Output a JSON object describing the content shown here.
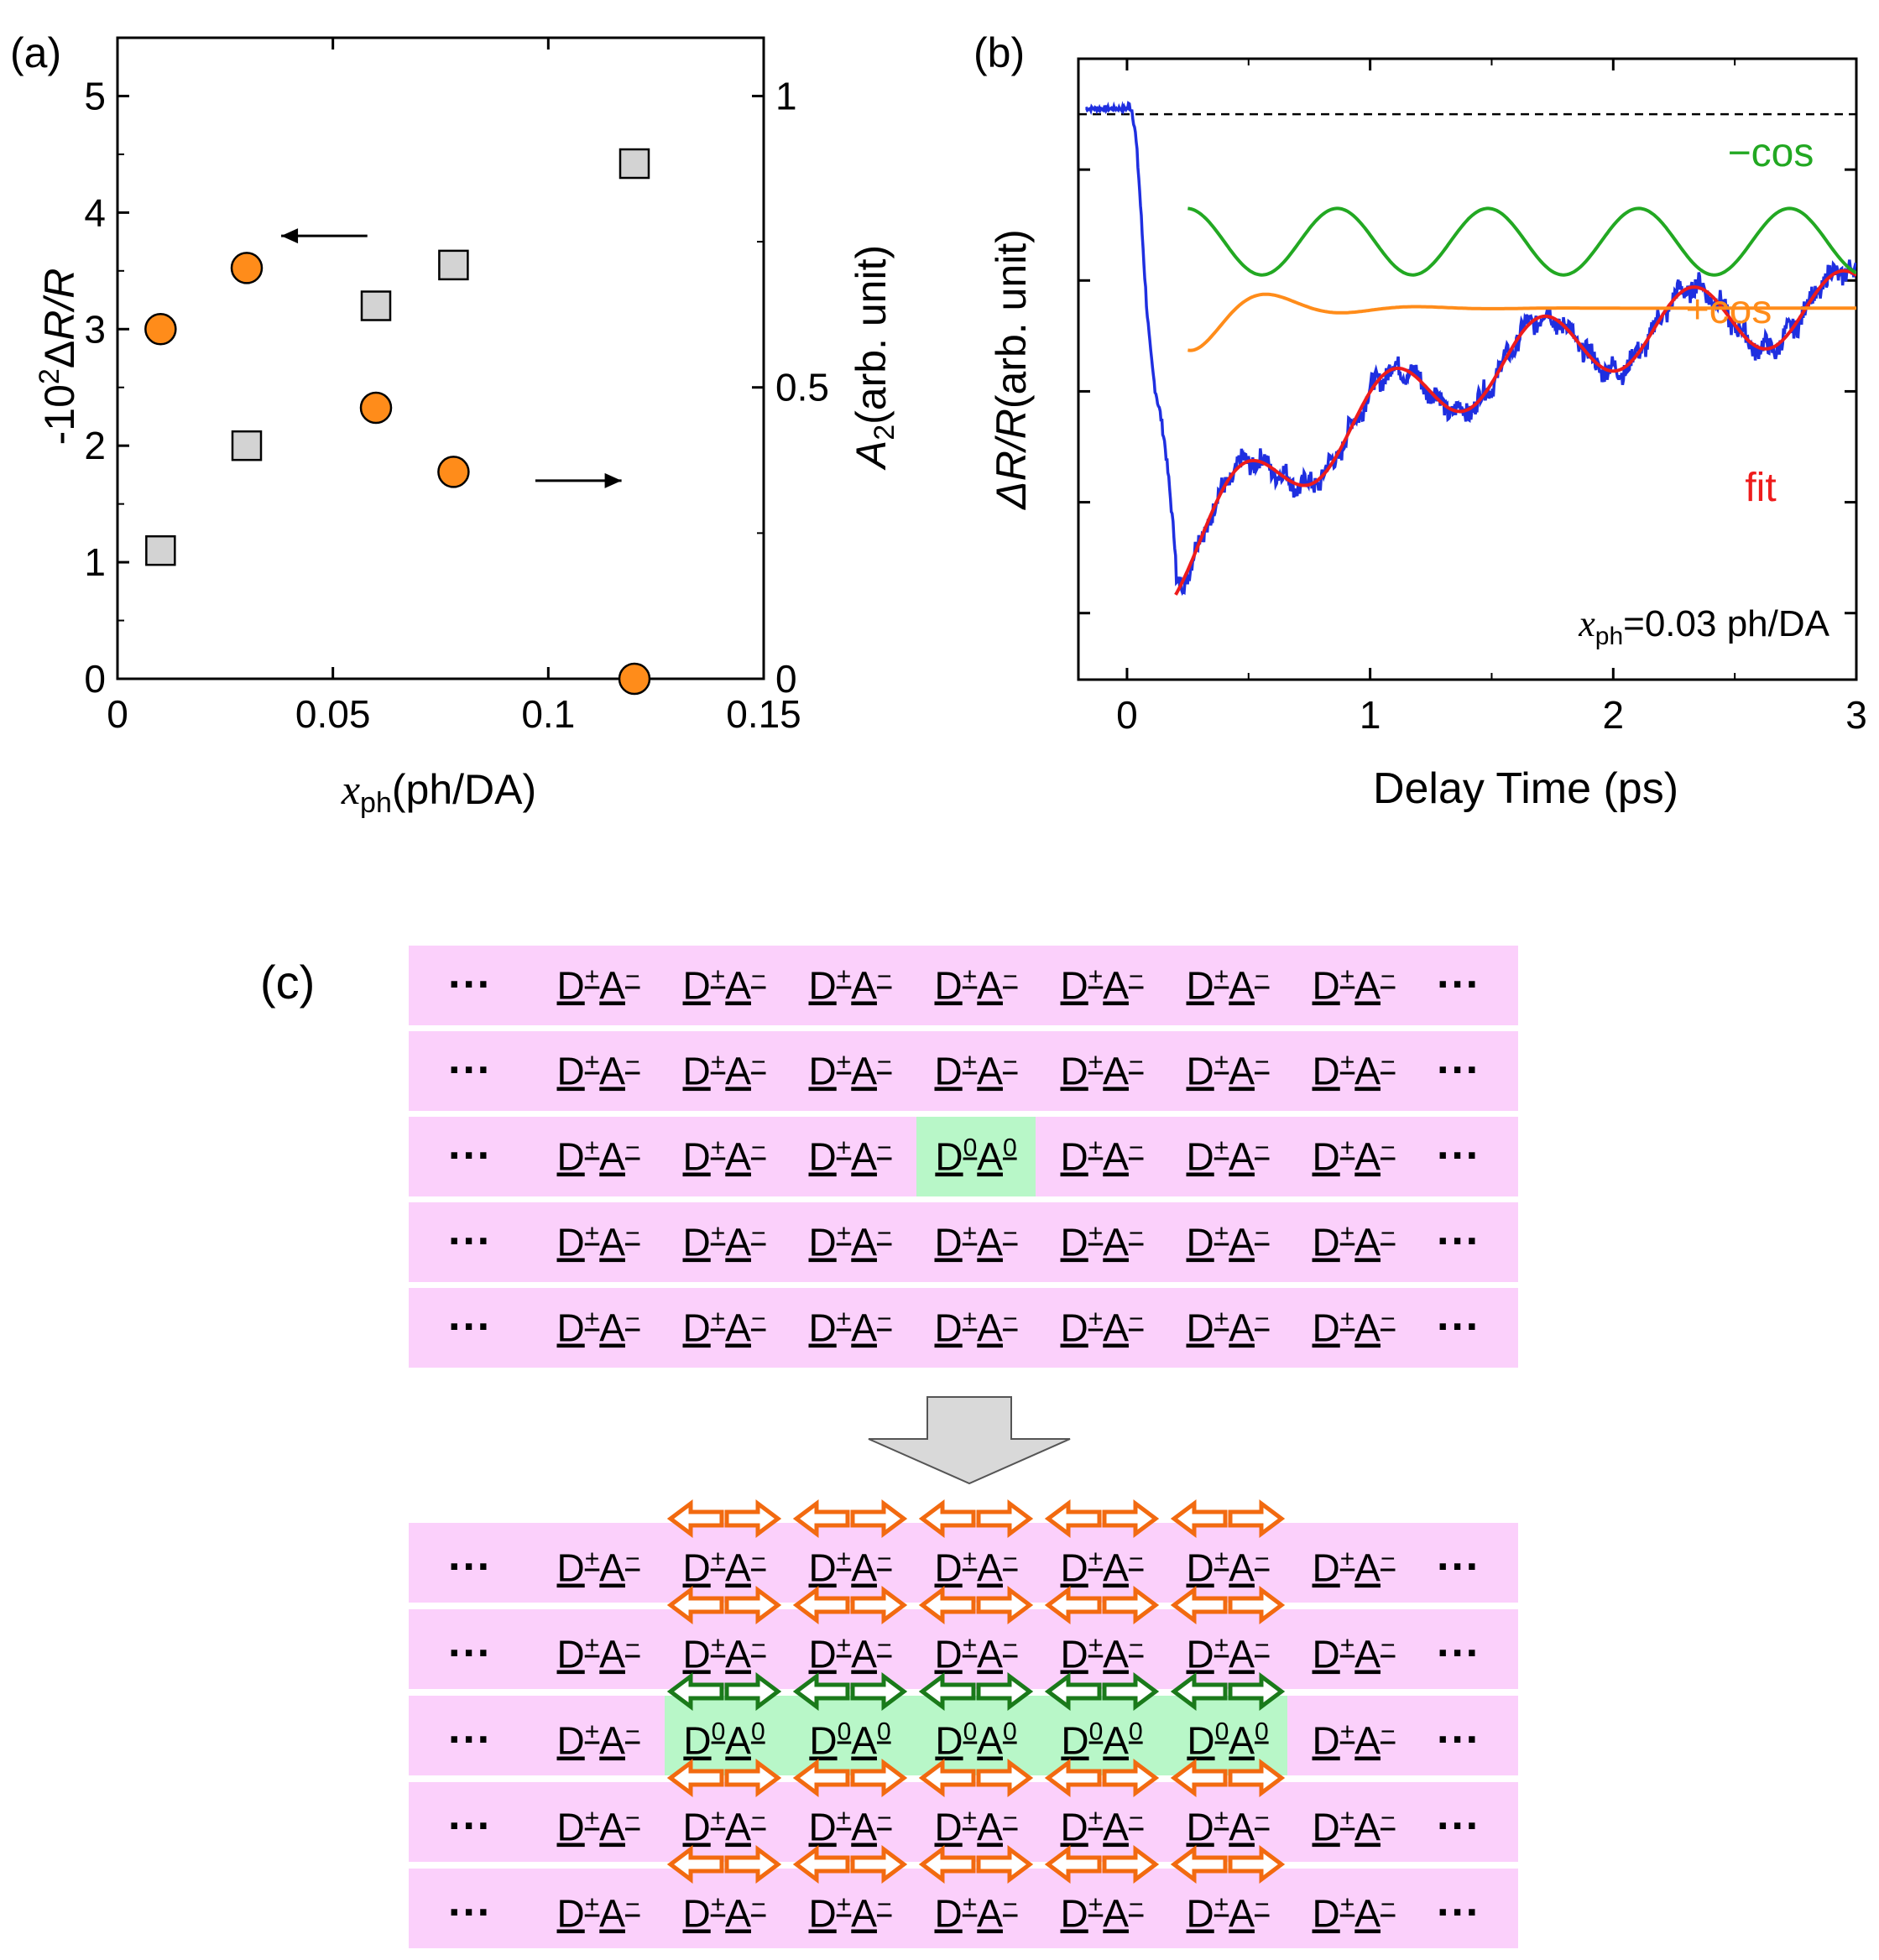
{
  "chart_data": [
    {
      "panel": "(a)",
      "type": "scatter",
      "xlabel_var": "x",
      "xlabel_sub": "ph",
      "xlabel_unit": "(ph/DA)",
      "xlim": [
        0,
        0.15
      ],
      "xticks": [
        "0",
        "0.05",
        "0.1",
        "0.15"
      ],
      "xtick_values": [
        0,
        0.05,
        0.1,
        0.15
      ],
      "ylabel_left_pre": "-10",
      "ylabel_left_sup": "2",
      "ylabel_left_mid": "Δ",
      "ylabel_left_var": "R/R",
      "ylim_left": [
        0,
        5.5
      ],
      "yticks_left": [
        "0",
        "1",
        "2",
        "3",
        "4",
        "5"
      ],
      "ylabel_right_var": "A",
      "ylabel_right_sub": "2",
      "ylabel_right_unit": "(arb. unit)",
      "ylim_right": [
        0,
        1.1
      ],
      "yticks_right": [
        "0",
        "0.5",
        "1"
      ],
      "series": [
        {
          "name": "-10^2 ΔR/R",
          "axis": "left",
          "marker": "square",
          "color": "#d3d3d3",
          "x": [
            0.01,
            0.03,
            0.06,
            0.078,
            0.12
          ],
          "y": [
            1.1,
            2.0,
            3.2,
            3.55,
            4.42
          ]
        },
        {
          "name": "A2",
          "axis": "right",
          "marker": "circle",
          "color": "#ff8c1a",
          "x": [
            0.01,
            0.03,
            0.06,
            0.078,
            0.12
          ],
          "y": [
            0.6,
            0.705,
            0.465,
            0.355,
            0.0
          ]
        }
      ],
      "arrows": [
        {
          "direction": "left",
          "points_to": "left axis",
          "x_from": 0.058,
          "x_to": 0.038,
          "y": 3.8
        },
        {
          "direction": "right",
          "points_to": "right axis",
          "x_from": 0.097,
          "x_to": 0.117,
          "y": 0.34
        }
      ]
    },
    {
      "panel": "(b)",
      "type": "line",
      "xlabel": "Delay Time (ps)",
      "xlim": [
        -0.2,
        3
      ],
      "xticks": [
        "0",
        "1",
        "2",
        "3"
      ],
      "xtick_values": [
        0,
        1,
        2,
        3
      ],
      "ylabel_pre": "Δ",
      "ylabel_var": "R/R",
      "ylabel_unit": "(arb. unit)",
      "ylim": [
        -4.1,
        1.5
      ],
      "ytick_values": [
        -3.5,
        -2.5,
        -1.5,
        -0.5,
        0.5
      ],
      "baseline_y": 1.0,
      "annotation": {
        "var": "x",
        "sub": "ph",
        "text": "=0.03 ph/DA"
      },
      "curve_labels": {
        "neg_cos": "−cos",
        "pos_cos": "+cos",
        "fit": "fit"
      },
      "colors": {
        "data": "#1f2fe0",
        "fit": "#ee1c1c",
        "neg_cos": "#22a822",
        "pos_cos": "#ff8c1a"
      },
      "series": [
        {
          "name": "data",
          "t_range": [
            -0.17,
            3.0
          ],
          "pre_level": 1.05,
          "drop_time": 0.0,
          "min_level": -2.92,
          "min_time": 0.32
        },
        {
          "name": "fit",
          "t_range": [
            0.2,
            3.0
          ],
          "period_ps": 0.62,
          "baseline_end": -0.55
        },
        {
          "name": "−cos",
          "t_range": [
            0.25,
            3.0
          ],
          "center": -0.15,
          "amplitude": 0.3,
          "period_ps": 0.62
        },
        {
          "name": "+cos",
          "t_range": [
            0.25,
            3.0
          ],
          "level": -0.75,
          "amplitude": 0.42,
          "damping_ps": 0.28
        }
      ]
    }
  ],
  "panel_c": {
    "label": "(c)",
    "ellipsis": "···",
    "pair_d": "D",
    "pair_a": "A",
    "ion_d_sup": "+",
    "ion_a_sup": "−",
    "neutral_d_sup": "0",
    "neutral_a_sup": "0",
    "colors": {
      "row_bg": "#fbd0fb",
      "neutral_bg": "#b8f7c8",
      "orange_arrow": "#f26a10",
      "green_arrow": "#1a7a1a",
      "big_arrow": "#d9d9d9"
    },
    "top_grid": {
      "rows": 5,
      "cols": 7,
      "neutral_cells": [
        [
          2,
          3
        ]
      ]
    },
    "bottom_grid": {
      "rows": 5,
      "cols": 7,
      "neutral_row": 2,
      "neutral_cols": [
        1,
        2,
        3,
        4,
        5
      ],
      "arrow_cols": [
        1,
        2,
        3,
        4,
        5
      ]
    }
  }
}
